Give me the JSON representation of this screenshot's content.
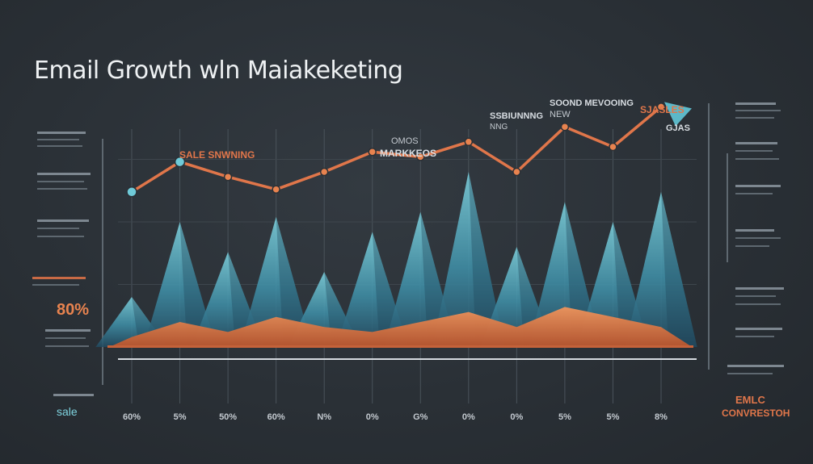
{
  "title": "Email Growth  wln   Maiakeketing",
  "annotations": {
    "sales_label": "SALE SNWNING",
    "top_a": "SSBIUNNNG",
    "top_a2": "NNG",
    "top_b": "SOOND MEVOOING",
    "top_b2": "NEW",
    "top_c": "SJASLES",
    "top_c2": "GJAS",
    "mid_a": "OMOS",
    "mid_b": "MARKKEOS",
    "left_pct": "80%",
    "left_sale": "sale",
    "right_a": "EMLC",
    "right_b": "CONVRESTOH"
  },
  "colors": {
    "background": "#2a3036",
    "line": "#e0764a",
    "teal": "#5cb8c8",
    "orange": "#e8834f",
    "text_light": "#eef1f3",
    "text_dim": "#c3c9cf"
  },
  "chart_data": {
    "type": "line",
    "title": "Email Growth  wln   Maiakeketing",
    "xlabel": "",
    "ylabel": "",
    "categories": [
      "60%",
      "5%",
      "50%",
      "60%",
      "N%",
      "0%",
      "G%",
      "0%",
      "0%",
      "5%",
      "5%",
      "8%"
    ],
    "series": [
      {
        "values": [
          62,
          74,
          68,
          63,
          70,
          78,
          76,
          82,
          70,
          88,
          80,
          96
        ]
      },
      {
        "values": [
          20,
          50,
          38,
          52,
          30,
          46,
          54,
          70,
          40,
          58,
          50,
          62
        ]
      },
      {
        "values": [
          4,
          10,
          6,
          12,
          8,
          6,
          10,
          14,
          8,
          16,
          12,
          8
        ]
      }
    ],
    "ylim": [
      0,
      100
    ],
    "grid": true,
    "legend": "none"
  }
}
